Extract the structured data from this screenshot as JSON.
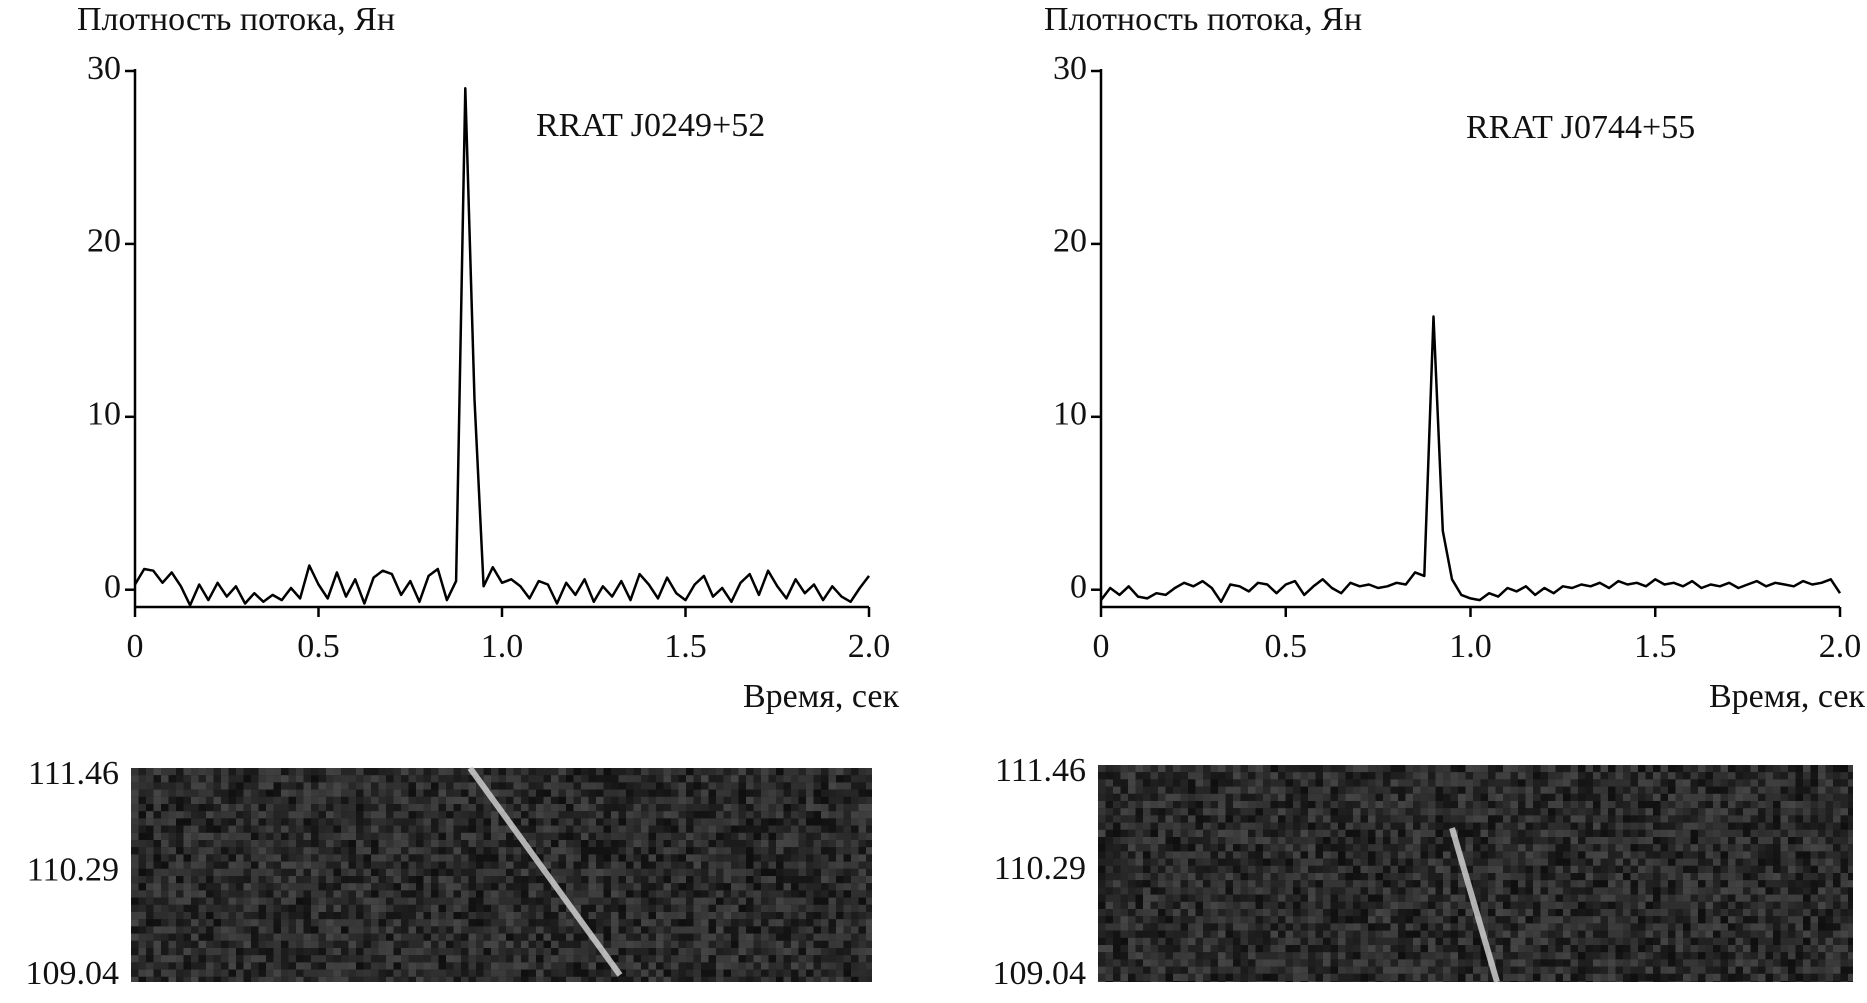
{
  "chart_data": [
    {
      "type": "line",
      "y_label": "Плотность потока, Ян",
      "x_label": "Время, сек",
      "annotation": "RRAT J0249+52",
      "x": [
        0,
        0.025,
        0.05,
        0.075,
        0.1,
        0.125,
        0.15,
        0.175,
        0.2,
        0.225,
        0.25,
        0.275,
        0.3,
        0.325,
        0.35,
        0.375,
        0.4,
        0.425,
        0.45,
        0.475,
        0.5,
        0.525,
        0.55,
        0.575,
        0.6,
        0.625,
        0.65,
        0.675,
        0.7,
        0.725,
        0.75,
        0.775,
        0.8,
        0.825,
        0.85,
        0.875,
        0.9,
        0.925,
        0.95,
        0.975,
        1,
        1.025,
        1.05,
        1.075,
        1.1,
        1.125,
        1.15,
        1.175,
        1.2,
        1.225,
        1.25,
        1.275,
        1.3,
        1.325,
        1.35,
        1.375,
        1.4,
        1.425,
        1.45,
        1.475,
        1.5,
        1.525,
        1.55,
        1.575,
        1.6,
        1.625,
        1.65,
        1.675,
        1.7,
        1.725,
        1.75,
        1.775,
        1.8,
        1.825,
        1.85,
        1.875,
        1.9,
        1.925,
        1.95,
        1.975,
        2
      ],
      "values": [
        0.3,
        1.2,
        1.1,
        0.4,
        1.0,
        0.2,
        -0.9,
        0.3,
        -0.6,
        0.4,
        -0.4,
        0.2,
        -0.8,
        -0.2,
        -0.7,
        -0.3,
        -0.6,
        0.1,
        -0.5,
        1.4,
        0.3,
        -0.5,
        1.0,
        -0.4,
        0.6,
        -0.8,
        0.7,
        1.1,
        0.9,
        -0.3,
        0.5,
        -0.7,
        0.8,
        1.2,
        -0.6,
        0.5,
        29.0,
        11.0,
        0.2,
        1.3,
        0.4,
        0.6,
        0.2,
        -0.5,
        0.5,
        0.3,
        -0.8,
        0.4,
        -0.3,
        0.6,
        -0.7,
        0.2,
        -0.4,
        0.5,
        -0.6,
        0.9,
        0.3,
        -0.5,
        0.7,
        -0.2,
        -0.6,
        0.3,
        0.8,
        -0.4,
        0.1,
        -0.7,
        0.4,
        0.9,
        -0.3,
        1.1,
        0.2,
        -0.5,
        0.6,
        -0.2,
        0.3,
        -0.6,
        0.2,
        -0.4,
        -0.7,
        0.1,
        0.8
      ],
      "color": "#000000",
      "xlim": [
        0,
        2
      ],
      "ylim": [
        -1,
        30
      ],
      "xticks": [
        0,
        0.5,
        {
          "value": 1,
          "label": "1.0"
        },
        1.5,
        {
          "value": 2,
          "label": "2.0"
        }
      ],
      "yticks": [
        0,
        10,
        20,
        30
      ],
      "spectrogram": {
        "ylim": [
          109.04,
          111.46
        ],
        "yticks": [
          111.46,
          110.29,
          109.04
        ]
      }
    },
    {
      "type": "line",
      "y_label": "Плотность потока, Ян",
      "x_label": "Время, сек",
      "annotation": "RRAT J0744+55",
      "x": [
        0,
        0.025,
        0.05,
        0.075,
        0.1,
        0.125,
        0.15,
        0.175,
        0.2,
        0.225,
        0.25,
        0.275,
        0.3,
        0.325,
        0.35,
        0.375,
        0.4,
        0.425,
        0.45,
        0.475,
        0.5,
        0.525,
        0.55,
        0.575,
        0.6,
        0.625,
        0.65,
        0.675,
        0.7,
        0.725,
        0.75,
        0.775,
        0.8,
        0.825,
        0.85,
        0.875,
        0.9,
        0.925,
        0.95,
        0.975,
        1,
        1.025,
        1.05,
        1.075,
        1.1,
        1.125,
        1.15,
        1.175,
        1.2,
        1.225,
        1.25,
        1.275,
        1.3,
        1.325,
        1.35,
        1.375,
        1.4,
        1.425,
        1.45,
        1.475,
        1.5,
        1.525,
        1.55,
        1.575,
        1.6,
        1.625,
        1.65,
        1.675,
        1.7,
        1.725,
        1.75,
        1.775,
        1.8,
        1.825,
        1.85,
        1.875,
        1.9,
        1.925,
        1.95,
        1.975,
        2
      ],
      "values": [
        -0.6,
        0.1,
        -0.3,
        0.2,
        -0.4,
        -0.5,
        -0.2,
        -0.3,
        0.1,
        0.4,
        0.2,
        0.5,
        0.1,
        -0.7,
        0.3,
        0.2,
        -0.1,
        0.4,
        0.3,
        -0.2,
        0.3,
        0.5,
        -0.3,
        0.2,
        0.6,
        0.1,
        -0.2,
        0.4,
        0.2,
        0.3,
        0.1,
        0.2,
        0.4,
        0.3,
        1.0,
        0.8,
        15.8,
        3.4,
        0.6,
        -0.3,
        -0.5,
        -0.6,
        -0.2,
        -0.4,
        0.1,
        -0.1,
        0.2,
        -0.3,
        0.1,
        -0.2,
        0.2,
        0.1,
        0.3,
        0.2,
        0.4,
        0.1,
        0.5,
        0.3,
        0.4,
        0.2,
        0.6,
        0.3,
        0.4,
        0.2,
        0.5,
        0.1,
        0.3,
        0.2,
        0.4,
        0.1,
        0.3,
        0.5,
        0.2,
        0.4,
        0.3,
        0.2,
        0.5,
        0.3,
        0.4,
        0.6,
        -0.2
      ],
      "color": "#000000",
      "xlim": [
        0,
        2
      ],
      "ylim": [
        -1,
        30
      ],
      "xticks": [
        0,
        0.5,
        {
          "value": 1,
          "label": "1.0"
        },
        1.5,
        {
          "value": 2,
          "label": "2.0"
        }
      ],
      "yticks": [
        0,
        10,
        20,
        30
      ],
      "spectrogram": {
        "ylim": [
          109.04,
          111.46
        ],
        "yticks": [
          111.46,
          110.29,
          109.04
        ]
      }
    }
  ]
}
